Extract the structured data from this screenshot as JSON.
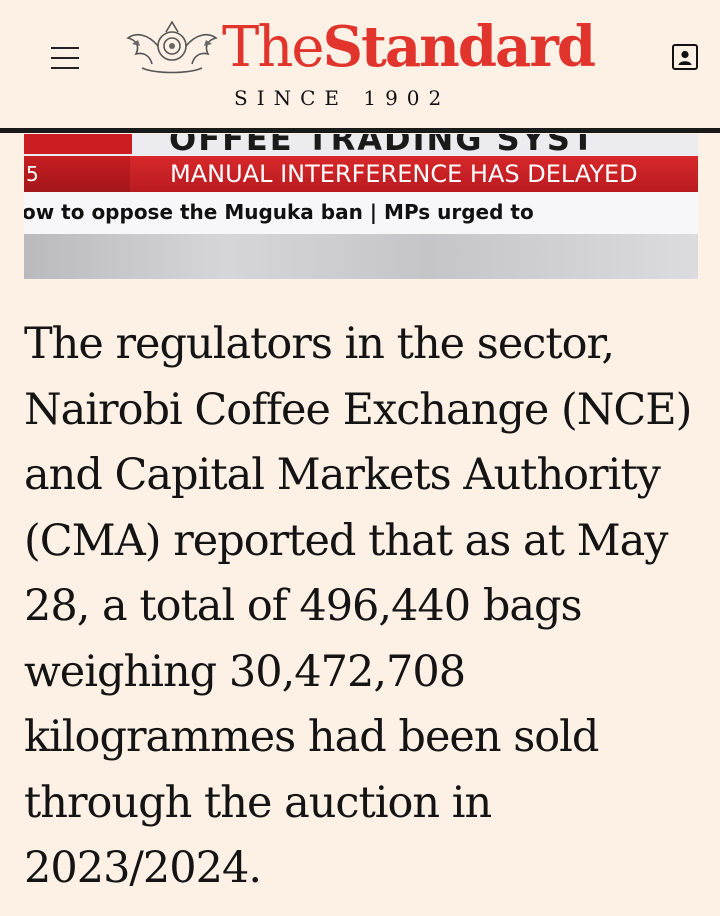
{
  "header": {
    "logo_the": "The",
    "logo_standard": "Standard",
    "since": "SINCE 1902",
    "brand_color": "#e0342d",
    "menu_icon": "hamburger-menu-icon",
    "account_icon": "account-icon"
  },
  "media": {
    "top_title_fragment": "OFFEE TRADING SYST",
    "ticker_number": "5",
    "ticker_headline": "MANUAL INTERFERENCE HAS DELAYED",
    "ticker_scroll": "ow to oppose the Muguka ban  |  MPs urged to"
  },
  "article": {
    "paragraph": "The regulators in the sector, Nairobi Coffee Exchange (NCE) and Capital Markets Authority (CMA) reported that as at May 28, a total of 496,440 bags weighing 30,472,708 kilogrammes had been sold through the auction in 2023/2024."
  }
}
